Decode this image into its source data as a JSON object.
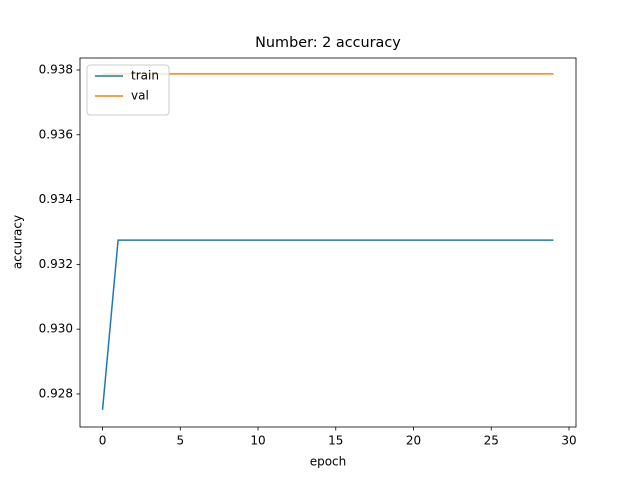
{
  "chart_data": {
    "type": "line",
    "title": "Number: 2 accuracy",
    "x_label": "epoch",
    "y_label": "accuracy",
    "x": [
      0,
      1,
      2,
      3,
      4,
      5,
      6,
      7,
      8,
      9,
      10,
      11,
      12,
      13,
      14,
      15,
      16,
      17,
      18,
      19,
      20,
      21,
      22,
      23,
      24,
      25,
      26,
      27,
      28,
      29
    ],
    "series": [
      {
        "name": "train",
        "color": "#1f77b4",
        "values": [
          0.92751,
          0.93275,
          0.93275,
          0.93275,
          0.93275,
          0.93275,
          0.93275,
          0.93275,
          0.93275,
          0.93275,
          0.93275,
          0.93275,
          0.93275,
          0.93275,
          0.93275,
          0.93275,
          0.93275,
          0.93275,
          0.93275,
          0.93275,
          0.93275,
          0.93275,
          0.93275,
          0.93275,
          0.93275,
          0.93275,
          0.93275,
          0.93275,
          0.93275,
          0.93275
        ]
      },
      {
        "name": "val",
        "color": "#ff7f0e",
        "values": [
          0.93788,
          0.93788,
          0.93788,
          0.93788,
          0.93788,
          0.93788,
          0.93788,
          0.93788,
          0.93788,
          0.93788,
          0.93788,
          0.93788,
          0.93788,
          0.93788,
          0.93788,
          0.93788,
          0.93788,
          0.93788,
          0.93788,
          0.93788,
          0.93788,
          0.93788,
          0.93788,
          0.93788,
          0.93788,
          0.93788,
          0.93788,
          0.93788,
          0.93788,
          0.93788
        ]
      }
    ],
    "xlim": [
      -1.45,
      30.45
    ],
    "ylim": [
      0.92698,
      0.93837
    ],
    "xticks": [
      0,
      5,
      10,
      15,
      20,
      25,
      30
    ],
    "yticks": [
      0.928,
      {
        "value": 0.93,
        "label": "0.930"
      },
      0.932,
      0.934,
      0.936,
      0.938
    ],
    "legend": "upper left",
    "grid": false
  }
}
